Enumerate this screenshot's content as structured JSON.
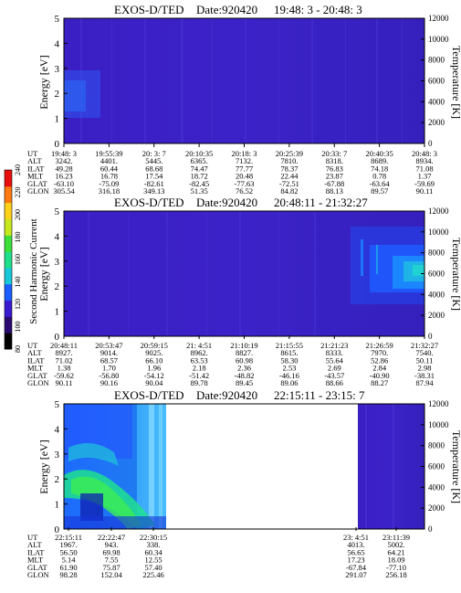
{
  "chart_data": [
    {
      "type": "heatmap",
      "title": "EXOS-D/TED",
      "date": "Date:920420",
      "time_range": "19:48: 3 - 20:48: 3",
      "ylabel": "Energy [eV]",
      "ylabel_right": "Temperature [K]",
      "ylim": [
        0,
        5
      ],
      "yticks": [
        "0",
        "1",
        "2",
        "3",
        "4",
        "5"
      ],
      "ylim_right": [
        0,
        12000
      ],
      "yticks_right": [
        "0",
        "2000",
        "4000",
        "6000",
        "8000",
        "10000",
        "12000"
      ],
      "row_labels": [
        "UT",
        "ALT",
        "ILAT",
        "MLT",
        "GLAT",
        "GLON"
      ],
      "columns": [
        [
          "19:48: 3",
          "3242.",
          "49.28",
          "16.23",
          "-63.10",
          "305.54"
        ],
        [
          "19:55:39",
          "4401.",
          "60.44",
          "16.78",
          "-75.09",
          "316.18"
        ],
        [
          "20: 3: 7",
          "5445.",
          "68.68",
          "17.54",
          "-82.61",
          "349.13"
        ],
        [
          "20:10:35",
          "6365.",
          "74.47",
          "18.72",
          "-82.45",
          "51.35"
        ],
        [
          "20:18: 3",
          "7132.",
          "77.77",
          "20.48",
          "-77.63",
          "76.52"
        ],
        [
          "20:25:39",
          "7810.",
          "78.37",
          "22.44",
          "-72.51",
          "84.82"
        ],
        [
          "20:33: 7",
          "8318.",
          "76.83",
          "23.87",
          "-67.88",
          "88.13"
        ],
        [
          "20:40:35",
          "8689.",
          "74.18",
          "0.78",
          "-63.64",
          "89.57"
        ],
        [
          "20:48: 3",
          "8934.",
          "71.08",
          "1.37",
          "-59.69",
          "90.11"
        ]
      ]
    },
    {
      "type": "heatmap",
      "title": "EXOS-D/TED",
      "date": "Date:920420",
      "time_range": "20:48:11 - 21:32:27",
      "ylabel": "Energy [eV]",
      "ylabel_right": "Temperature [K]",
      "ylim": [
        0,
        5
      ],
      "yticks": [
        "0",
        "1",
        "2",
        "3",
        "4",
        "5"
      ],
      "ylim_right": [
        0,
        12000
      ],
      "yticks_right": [
        "0",
        "2000",
        "4000",
        "6000",
        "8000",
        "10000",
        "12000"
      ],
      "row_labels": [
        "UT",
        "ALT",
        "ILAT",
        "MLT",
        "GLAT",
        "GLON"
      ],
      "columns": [
        [
          "20:48:11",
          "8927.",
          "71.02",
          "1.38",
          "-59.62",
          "90.11"
        ],
        [
          "20:53:47",
          "9014.",
          "68.57",
          "1.70",
          "-56.80",
          "90.16"
        ],
        [
          "20:59:15",
          "9025.",
          "66.10",
          "1.96",
          "-54.12",
          "90.04"
        ],
        [
          "21: 4:51",
          "8962.",
          "63.53",
          "2.18",
          "-51.42",
          "89.78"
        ],
        [
          "21:10:19",
          "8827.",
          "60.98",
          "2.36",
          "-48.82",
          "89.45"
        ],
        [
          "21:15:55",
          "8615.",
          "58.30",
          "2.53",
          "-46.16",
          "89.06"
        ],
        [
          "21:21:23",
          "8333.",
          "55.64",
          "2.69",
          "-43.57",
          "88.66"
        ],
        [
          "21:26:59",
          "7970.",
          "52.86",
          "2.84",
          "-40.90",
          "88.27"
        ],
        [
          "21:32:27",
          "7540.",
          "50.11",
          "2.98",
          "-38.31",
          "87.94"
        ]
      ]
    },
    {
      "type": "heatmap",
      "title": "EXOS-D/TED",
      "date": "Date:920420",
      "time_range": "22:15:11 - 23:15: 7",
      "ylabel": "Energy [eV]",
      "ylabel_right": "Temperature [K]",
      "ylim": [
        0,
        5
      ],
      "yticks": [
        "0",
        "1",
        "2",
        "3",
        "4",
        "5"
      ],
      "ylim_right": [
        0,
        12000
      ],
      "yticks_right": [
        "0",
        "2000",
        "4000",
        "6000",
        "8000",
        "10000",
        "12000"
      ],
      "row_labels": [
        "UT",
        "ALT",
        "ILAT",
        "MLT",
        "GLAT",
        "GLON"
      ],
      "columns": [
        [
          "22:15:11",
          "1967.",
          "56.50",
          "5.14",
          "61.90",
          "98.28"
        ],
        [
          "22:22:47",
          "943.",
          "69.98",
          "7.55",
          "75.87",
          "152.04"
        ],
        [
          "22:30:15",
          "338.",
          "60.34",
          "12.55",
          "57.40",
          "225.46"
        ],
        [
          "23: 4:51",
          "4013.",
          "56.65",
          "17.23",
          "-67.84",
          "291.07"
        ],
        [
          "23:11:39",
          "5002.",
          "64.21",
          "18.09",
          "-77.10",
          "256.18"
        ]
      ]
    }
  ],
  "colorbar": {
    "label": "Second Harmonic Current",
    "ticks": [
      "80",
      "100",
      "120",
      "140",
      "160",
      "180",
      "200",
      "220",
      "240"
    ],
    "colors": [
      "#000000",
      "#2a0a6e",
      "#3a1bd0",
      "#1a5cff",
      "#19c8d8",
      "#1fe08a",
      "#3de03a",
      "#c8e81e",
      "#ffd21a",
      "#ff7a10",
      "#e80f0f"
    ]
  }
}
